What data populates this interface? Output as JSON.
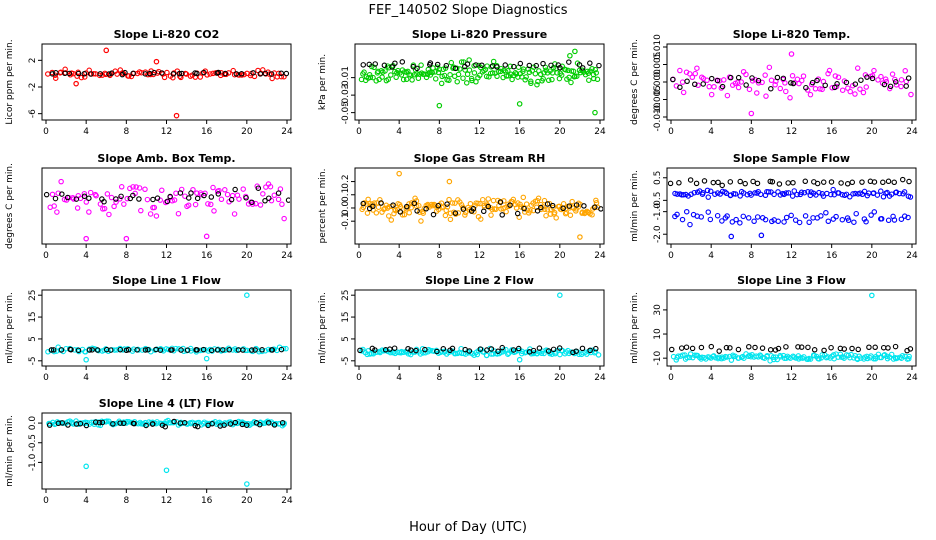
{
  "page": {
    "title": "FEF_140502  Slope Diagnostics",
    "xlabel": "Hour of Day (UTC)"
  },
  "colors": {
    "red": "#ff0000",
    "green": "#00cc00",
    "magenta": "#ff00ff",
    "orange": "#ffa500",
    "blue": "#0000ff",
    "cyan": "#00e5ee",
    "black": "#000000"
  },
  "chart_data": [
    {
      "type": "scatter",
      "title": "Slope Li-820 CO2",
      "ylabel": "Licor ppm per min.",
      "x_ticks": [
        "0",
        "4",
        "8",
        "12",
        "16",
        "20",
        "24"
      ],
      "xlim": [
        0,
        24
      ],
      "ylim": [
        -6.5,
        4
      ],
      "y_ticks": [
        "-6",
        "-2",
        "2"
      ],
      "series": [
        {
          "name": "all",
          "color": "red",
          "center": 0,
          "spread": 0.7,
          "density": 2,
          "outliers": [
            [
              6,
              3.5
            ],
            [
              13,
              -6.3
            ],
            [
              11,
              1.8
            ],
            [
              3,
              -1.5
            ]
          ]
        },
        {
          "name": "selected",
          "color": "black",
          "center": 0,
          "spread": 0.15,
          "density": 0.7,
          "outliers": []
        }
      ]
    },
    {
      "type": "scatter",
      "title": "Slope Li-820 Pressure",
      "ylabel": "kPa per min.",
      "x_ticks": [
        "0",
        "4",
        "8",
        "12",
        "16",
        "20",
        "24"
      ],
      "xlim": [
        0,
        24
      ],
      "ylim": [
        -0.055,
        0.025
      ],
      "y_ticks": [
        "-0.05",
        "-0.03",
        "-0.01"
      ],
      "series": [
        {
          "name": "all",
          "color": "green",
          "center": -0.005,
          "spread": 0.012,
          "density": 4,
          "outliers": [
            [
              8,
              -0.042
            ],
            [
              23.5,
              -0.05
            ],
            [
              21.5,
              0.02
            ],
            [
              16,
              -0.04
            ],
            [
              21,
              0.015
            ]
          ]
        },
        {
          "name": "selected",
          "color": "black",
          "center": 0.004,
          "spread": 0.004,
          "density": 0.7,
          "outliers": []
        }
      ]
    },
    {
      "type": "scatter",
      "title": "Slope Li-820 Temp.",
      "ylabel": "degrees C per min.",
      "x_ticks": [
        "0",
        "4",
        "8",
        "12",
        "16",
        "20",
        "24"
      ],
      "xlim": [
        0,
        24
      ],
      "ylim": [
        -0.01,
        0.01
      ],
      "y_ticks": [
        "-0.010",
        "-0.005",
        "0.000",
        "0.005",
        "0.010"
      ],
      "series": [
        {
          "name": "all",
          "color": "magenta",
          "center": 0,
          "spread": 0.004,
          "density": 2,
          "outliers": [
            [
              8,
              -0.009
            ],
            [
              12,
              0.008
            ]
          ]
        },
        {
          "name": "selected",
          "color": "black",
          "center": 0,
          "spread": 0.002,
          "density": 0.7,
          "outliers": []
        }
      ]
    },
    {
      "type": "scatter",
      "title": "Slope Amb. Box Temp.",
      "ylabel": "degrees C per min.",
      "x_ticks": [
        "0",
        "4",
        "8",
        "12",
        "16",
        "20",
        "24"
      ],
      "xlim": [
        0,
        24
      ],
      "ylim": [
        -0.9,
        0.6
      ],
      "y_ticks": [],
      "series": [
        {
          "name": "all",
          "color": "magenta",
          "center": 0,
          "spread": 0.38,
          "density": 2,
          "outliers": [
            [
              8,
              -0.85
            ],
            [
              16,
              -0.8
            ],
            [
              4,
              -0.85
            ]
          ]
        },
        {
          "name": "selected",
          "color": "black",
          "center": 0.05,
          "spread": 0.15,
          "density": 0.7,
          "outliers": []
        }
      ]
    },
    {
      "type": "scatter",
      "title": "Slope Gas Stream RH",
      "ylabel": "percent per min.",
      "x_ticks": [
        "0",
        "4",
        "8",
        "12",
        "16",
        "20",
        "24"
      ],
      "xlim": [
        0,
        24
      ],
      "ylim": [
        -0.25,
        0.28
      ],
      "y_ticks": [
        "-0.1",
        "0.0",
        "0.1",
        "0.2"
      ],
      "series": [
        {
          "name": "all",
          "color": "orange",
          "center": 0,
          "spread": 0.08,
          "density": 4,
          "outliers": [
            [
              4,
              0.26
            ],
            [
              22,
              -0.22
            ],
            [
              9,
              0.2
            ]
          ]
        },
        {
          "name": "selected",
          "color": "black",
          "center": 0,
          "spread": 0.06,
          "density": 0.7,
          "outliers": []
        }
      ]
    },
    {
      "type": "scatter",
      "title": "Slope Sample Flow",
      "ylabel": "ml/min per min.",
      "x_ticks": [
        "0",
        "4",
        "8",
        "12",
        "16",
        "20",
        "24"
      ],
      "xlim": [
        0,
        24
      ],
      "ylim": [
        -2.3,
        0.8
      ],
      "y_ticks": [
        "-2.0",
        "-1.0",
        "-0.5",
        "0.5"
      ],
      "series": [
        {
          "name": "band-upper",
          "color": "blue",
          "center": -0.2,
          "spread": 0.15,
          "density": 2,
          "outliers": []
        },
        {
          "name": "band-lower",
          "color": "blue",
          "center": -1.3,
          "spread": 0.25,
          "density": 1.2,
          "outliers": [
            [
              6,
              -2.1
            ],
            [
              9,
              -2.05
            ]
          ]
        },
        {
          "name": "selected",
          "color": "black",
          "center": 0.3,
          "spread": 0.15,
          "density": 0.7,
          "outliers": []
        }
      ]
    },
    {
      "type": "scatter",
      "title": "Slope Line 1 Flow",
      "ylabel": "ml/min per min.",
      "x_ticks": [
        "0",
        "4",
        "8",
        "12",
        "16",
        "20",
        "24"
      ],
      "xlim": [
        0,
        24
      ],
      "ylim": [
        -6,
        26
      ],
      "y_ticks": [
        "-5",
        "5",
        "15",
        "25"
      ],
      "series": [
        {
          "name": "all",
          "color": "cyan",
          "center": 0,
          "spread": 1.0,
          "density": 2,
          "outliers": [
            [
              20,
              25
            ],
            [
              4,
              -4.5
            ],
            [
              16,
              -4
            ]
          ]
        },
        {
          "name": "selected",
          "color": "black",
          "center": 0,
          "spread": 0.2,
          "density": 0.8,
          "outliers": []
        }
      ]
    },
    {
      "type": "scatter",
      "title": "Slope Line 2 Flow",
      "ylabel": "ml/min per min.",
      "x_ticks": [
        "0",
        "4",
        "8",
        "12",
        "16",
        "20",
        "24"
      ],
      "xlim": [
        0,
        24
      ],
      "ylim": [
        -6,
        26
      ],
      "y_ticks": [
        "-5",
        "5",
        "15",
        "25"
      ],
      "series": [
        {
          "name": "all",
          "color": "cyan",
          "center": -1,
          "spread": 1.5,
          "density": 3,
          "outliers": [
            [
              20,
              25
            ],
            [
              16,
              -4.5
            ]
          ]
        },
        {
          "name": "selected",
          "color": "black",
          "center": 0,
          "spread": 1.2,
          "density": 0.7,
          "outliers": []
        }
      ]
    },
    {
      "type": "scatter",
      "title": "Slope Line 3 Flow",
      "ylabel": "ml/min per min.",
      "x_ticks": [
        "0",
        "4",
        "8",
        "12",
        "16",
        "20",
        "24"
      ],
      "xlim": [
        0,
        24
      ],
      "ylim": [
        -14,
        44
      ],
      "y_ticks": [
        "-10",
        "10",
        "30"
      ],
      "series": [
        {
          "name": "all",
          "color": "cyan",
          "center": -9,
          "spread": 2.5,
          "density": 3,
          "outliers": [
            [
              20,
              42
            ]
          ]
        },
        {
          "name": "selected",
          "color": "black",
          "center": -2,
          "spread": 2,
          "density": 0.7,
          "outliers": []
        }
      ]
    },
    {
      "type": "scatter",
      "title": "Slope Line 4 (LT) Flow",
      "ylabel": "ml/min per min.",
      "x_ticks": [
        "0",
        "4",
        "8",
        "12",
        "16",
        "20",
        "24"
      ],
      "xlim": [
        0,
        24
      ],
      "ylim": [
        -1.6,
        0.18
      ],
      "y_ticks": [
        "-1.0",
        "-0.5",
        "0.0"
      ],
      "series": [
        {
          "name": "all",
          "color": "cyan",
          "center": 0,
          "spread": 0.05,
          "density": 3,
          "outliers": [
            [
              4,
              -1.1
            ],
            [
              12,
              -1.2
            ],
            [
              20,
              -1.55
            ]
          ]
        },
        {
          "name": "selected",
          "color": "black",
          "center": -0.02,
          "spread": 0.06,
          "density": 0.8,
          "outliers": []
        }
      ]
    }
  ]
}
